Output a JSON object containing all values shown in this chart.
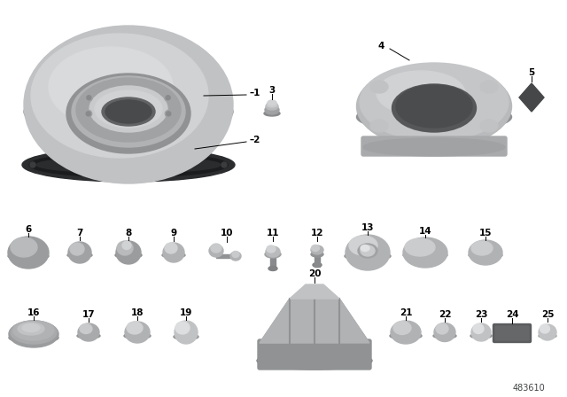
{
  "background_color": "#ffffff",
  "diagram_number": "483610",
  "label_fontsize": 7.5,
  "figsize": [
    6.4,
    4.48
  ],
  "dpi": 100,
  "gray_light": "#c8cacc",
  "gray_mid": "#a8aaac",
  "gray_dark": "#888a8c",
  "gray_darker": "#606264",
  "black_ring": "#383a3c",
  "dark_cap": "#5a5c5e"
}
